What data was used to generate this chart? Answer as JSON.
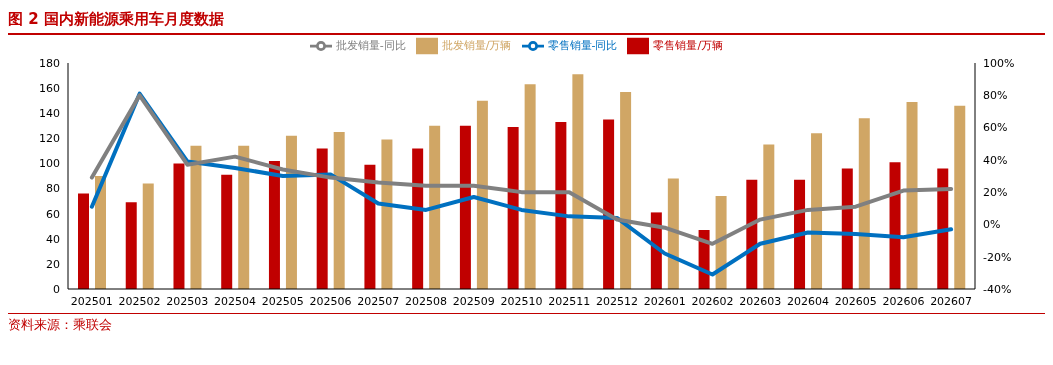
{
  "chart_data": {
    "type": "bar",
    "title": "图 2  国内新能源乘用车月度数据",
    "categories": [
      "202501",
      "202502",
      "202503",
      "202504",
      "202505",
      "202506",
      "202507",
      "202508",
      "202509",
      "202510",
      "202511",
      "202512",
      "202601",
      "202602",
      "202603",
      "202604",
      "202605",
      "202606",
      "202607"
    ],
    "series": [
      {
        "name": "零售销量/万辆",
        "color": "#c00000",
        "values": [
          76,
          69,
          100,
          91,
          102,
          112,
          99,
          112,
          130,
          129,
          133,
          135,
          61,
          47,
          87,
          87,
          96,
          101,
          96
        ]
      },
      {
        "name": "批发销量/万辆",
        "color": "#d0a665",
        "values": [
          90,
          84,
          114,
          114,
          122,
          125,
          119,
          130,
          150,
          163,
          171,
          157,
          88,
          74,
          115,
          124,
          136,
          149,
          146
        ]
      },
      {
        "name": "零售销量-同比",
        "type": "line",
        "axis": "y2",
        "color": "#0070c0",
        "values": [
          11,
          81,
          39,
          35,
          30,
          31,
          13,
          9,
          17,
          9,
          5,
          4,
          -18,
          -31,
          -12,
          -5,
          -6,
          -8,
          -3
        ]
      },
      {
        "name": "批发销量-同比",
        "type": "line",
        "axis": "y2",
        "color": "#808080",
        "values": [
          29,
          80,
          37,
          42,
          34,
          29,
          26,
          24,
          24,
          20,
          20,
          3,
          -2,
          -12,
          3,
          9,
          11,
          21,
          22
        ]
      }
    ],
    "ylim": [
      0,
      180
    ],
    "yticks": [
      0,
      20,
      40,
      60,
      80,
      100,
      120,
      140,
      160,
      180
    ],
    "y2lim": [
      -40,
      100
    ],
    "y2ticks": [
      {
        "value": -40,
        "label": "-40%"
      },
      {
        "value": -20,
        "label": "-20%"
      },
      {
        "value": 0,
        "label": "0%"
      },
      {
        "value": 20,
        "label": "20%"
      },
      {
        "value": 40,
        "label": "40%"
      },
      {
        "value": 60,
        "label": "60%"
      },
      {
        "value": 80,
        "label": "80%"
      },
      {
        "value": 100,
        "label": "100%"
      }
    ],
    "grid": false,
    "legend": "top",
    "marker": "none",
    "line_style": "solid",
    "annotations": [
      "资料来源：乘联会"
    ]
  }
}
